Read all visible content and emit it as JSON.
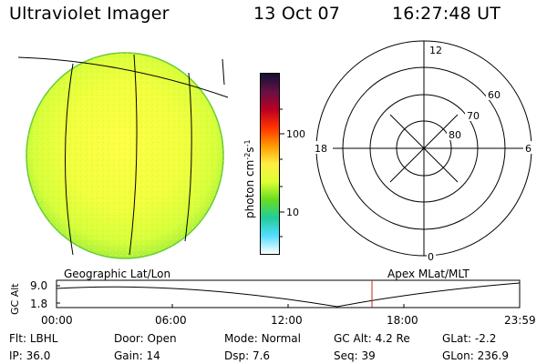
{
  "header": {
    "title": "Ultraviolet Imager",
    "date": "13 Oct 07",
    "time": "16:27:48 UT"
  },
  "colorbar": {
    "unit_label_parts": [
      "photon cm",
      "-2",
      "s",
      "-1"
    ],
    "tick_labels": [
      "100",
      "10"
    ],
    "colors": [
      "#111133",
      "#661144",
      "#bb0022",
      "#ff3300",
      "#ff9900",
      "#ffee44",
      "#ddff33",
      "#66dd22",
      "#22cc99",
      "#55ddff",
      "#ffffff"
    ]
  },
  "polar_plot": {
    "mlt_labels": [
      "12",
      "18",
      "6",
      "0"
    ],
    "lat_labels": [
      "60",
      "70",
      "80"
    ]
  },
  "map_labels": {
    "left": "Geographic Lat/Lon",
    "right": "Apex MLat/MLT"
  },
  "altitude_plot": {
    "ylabel": "GC Alt",
    "yticks": [
      "9.0",
      "1.8"
    ],
    "xticks": [
      "00:00",
      "06:00",
      "12:00",
      "18:00",
      "23:59"
    ],
    "marker_color": "#cc2222"
  },
  "info": {
    "row1": [
      {
        "label": "Flt:",
        "value": "LBHL"
      },
      {
        "label": "Door:",
        "value": "Open"
      },
      {
        "label": "Mode:",
        "value": "Normal"
      },
      {
        "label": "GC Alt:",
        "value": "4.2 Re"
      },
      {
        "label": "GLat:",
        "value": "-2.2"
      }
    ],
    "row2": [
      {
        "label": "IP:",
        "value": "36.0"
      },
      {
        "label": "Gain:",
        "value": "14"
      },
      {
        "label": "Dsp:",
        "value": "7.6"
      },
      {
        "label": "Seq:",
        "value": "39"
      },
      {
        "label": "GLon:",
        "value": "236.9"
      }
    ]
  }
}
